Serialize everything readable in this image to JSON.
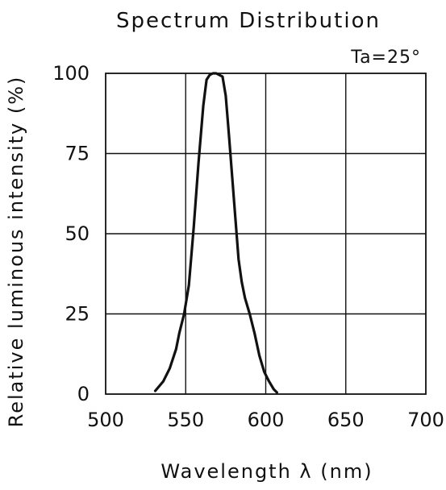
{
  "chart_data": {
    "type": "line",
    "title": "Spectrum Distribution",
    "xlabel": "Wavelength λ (nm)",
    "ylabel": "Relative luminous intensity (%)",
    "annotation": "Ta=25°",
    "xlim": [
      500,
      700
    ],
    "ylim": [
      0,
      100
    ],
    "x_ticks": [
      500,
      550,
      600,
      650,
      700
    ],
    "y_ticks": [
      0,
      25,
      50,
      75,
      100
    ],
    "grid": true,
    "series": [
      {
        "name": "",
        "x": [
          531,
          536,
          540,
          544,
          546,
          549,
          552,
          555,
          558,
          561,
          563,
          565,
          567,
          569,
          571,
          573,
          575,
          577,
          579,
          581,
          583,
          585,
          587,
          590,
          593,
          596,
          599,
          602,
          605,
          607
        ],
        "y": [
          1,
          4,
          8,
          14,
          19,
          25,
          34,
          52,
          72,
          90,
          98,
          99.5,
          100,
          100,
          99.5,
          99,
          93,
          81,
          68,
          55,
          42,
          35,
          30,
          25,
          19,
          12,
          7,
          4,
          1.5,
          0.5
        ]
      }
    ]
  }
}
